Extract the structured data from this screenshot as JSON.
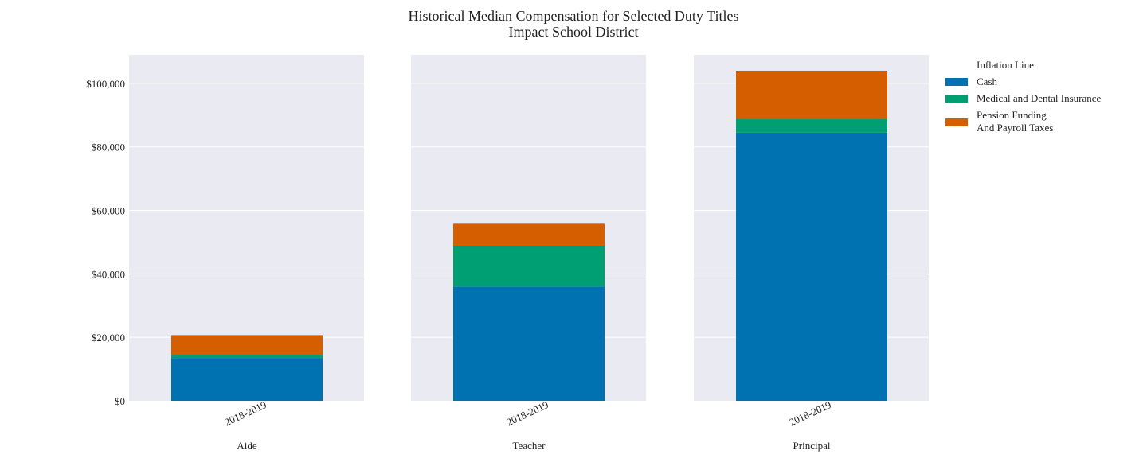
{
  "chart_data": {
    "type": "bar",
    "stacked": true,
    "title": "Historical Median Compensation for Selected Duty Titles",
    "subtitle": "Impact School District",
    "ylim": [
      0,
      109000
    ],
    "yticks": [
      0,
      20000,
      40000,
      60000,
      80000,
      100000
    ],
    "ytick_labels": [
      "$0",
      "$20,000",
      "$40,000",
      "$60,000",
      "$80,000",
      "$100,000"
    ],
    "grid": true,
    "legend_position": "right",
    "legend_items": [
      {
        "label": "Inflation Line",
        "color": ""
      },
      {
        "label": "Cash",
        "color": "#0072b2"
      },
      {
        "label": "Medical and Dental Insurance",
        "color": "#009e73"
      },
      {
        "label": "Pension Funding\nAnd Payroll Taxes",
        "color": "#d55e00"
      }
    ],
    "panels": [
      {
        "name": "Aide",
        "category": "2018-2019",
        "values": {
          "cash": 13500,
          "medical": 1000,
          "pension": 6200
        }
      },
      {
        "name": "Teacher",
        "category": "2018-2019",
        "values": {
          "cash": 36000,
          "medical": 12800,
          "pension": 7000
        }
      },
      {
        "name": "Principal",
        "category": "2018-2019",
        "values": {
          "cash": 84500,
          "medical": 4200,
          "pension": 15300
        }
      }
    ],
    "series": [
      {
        "key": "cash",
        "name": "Cash",
        "color": "#0072b2"
      },
      {
        "key": "medical",
        "name": "Medical and Dental Insurance",
        "color": "#009e73"
      },
      {
        "key": "pension",
        "name": "Pension Funding\nAnd Payroll Taxes",
        "color": "#d55e00"
      }
    ],
    "panel_background": "#eaeaf2"
  }
}
